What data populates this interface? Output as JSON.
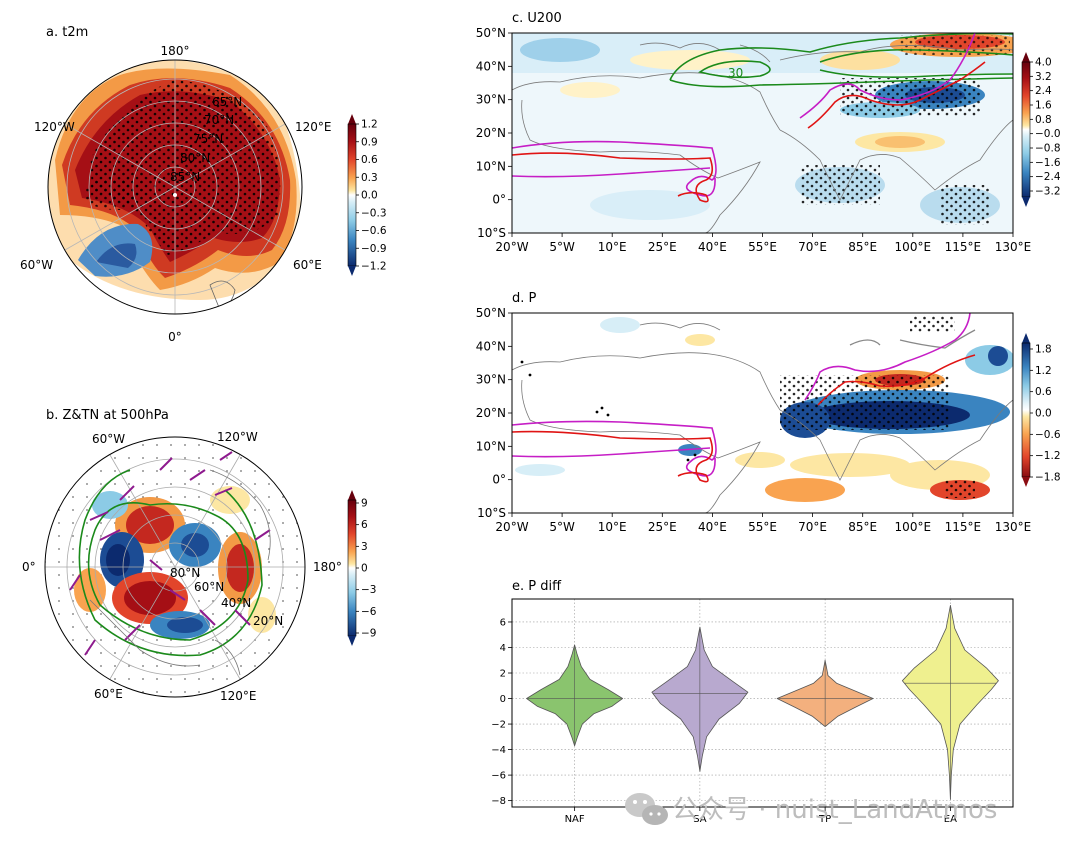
{
  "panels": {
    "a": {
      "title": "a. t2m",
      "lon_labels": [
        "180°",
        "120°W",
        "120°E",
        "60°W",
        "60°E",
        "0°"
      ],
      "lat_labels": [
        "65°N",
        "70°N",
        "75°N",
        "80°N",
        "85°N"
      ],
      "colorbar_ticks": [
        "1.2",
        "0.9",
        "0.6",
        "0.3",
        "0.0",
        "−0.3",
        "−0.6",
        "−0.9",
        "−1.2"
      ]
    },
    "b": {
      "title": "b. Z&TN at 500hPa",
      "lon_labels": [
        "60°W",
        "120°W",
        "0°",
        "180°",
        "60°E",
        "120°E"
      ],
      "lat_labels": [
        "80°N",
        "60°N",
        "40°N",
        "20°N"
      ],
      "colorbar_ticks": [
        "9",
        "6",
        "3",
        "0",
        "−3",
        "−6",
        "−9"
      ]
    },
    "c": {
      "title": "c. U200",
      "y_labels": [
        "50°N",
        "40°N",
        "30°N",
        "20°N",
        "10°N",
        "0°",
        "10°S"
      ],
      "x_labels": [
        "20°W",
        "5°W",
        "10°E",
        "25°E",
        "40°E",
        "55°E",
        "70°E",
        "85°E",
        "100°E",
        "115°E",
        "130°E"
      ],
      "contour_label": "30",
      "colorbar_ticks": [
        "4.0",
        "3.2",
        "2.4",
        "1.6",
        "0.8",
        "−0.0",
        "−0.8",
        "−1.6",
        "−2.4",
        "−3.2"
      ]
    },
    "d": {
      "title": "d. P",
      "y_labels": [
        "50°N",
        "40°N",
        "30°N",
        "20°N",
        "10°N",
        "0°",
        "10°S"
      ],
      "x_labels": [
        "20°W",
        "5°W",
        "10°E",
        "25°E",
        "40°E",
        "55°E",
        "70°E",
        "85°E",
        "100°E",
        "115°E",
        "130°E"
      ],
      "colorbar_ticks": [
        "1.8",
        "1.2",
        "0.6",
        "0.0",
        "−0.6",
        "−1.2",
        "−1.8"
      ]
    }
  },
  "chart_data": {
    "type": "violin",
    "title": "e. P diff",
    "categories": [
      "NAF",
      "SA",
      "TP",
      "EA"
    ],
    "colors": [
      "#8ac46e",
      "#b8a9cf",
      "#f3b07e",
      "#eff08f"
    ],
    "ylim": [
      -8.5,
      7.8
    ],
    "yticks": [
      6,
      4,
      2,
      0,
      -2,
      -4,
      -6,
      -8
    ],
    "ytick_labels": [
      "6",
      "4",
      "2",
      "0",
      "−2",
      "−4",
      "−6",
      "−8"
    ],
    "grid": true,
    "series": [
      {
        "name": "NAF",
        "min": -3.7,
        "max": 4.2,
        "median": 0.0,
        "profile": [
          [
            -3.7,
            0.0
          ],
          [
            -3.0,
            0.06
          ],
          [
            -2.0,
            0.16
          ],
          [
            -1.2,
            0.4
          ],
          [
            -0.6,
            0.78
          ],
          [
            0.0,
            1.0
          ],
          [
            0.7,
            0.7
          ],
          [
            1.5,
            0.32
          ],
          [
            2.5,
            0.14
          ],
          [
            3.5,
            0.05
          ],
          [
            4.2,
            0.0
          ]
        ]
      },
      {
        "name": "SA",
        "min": -5.7,
        "max": 5.6,
        "median": 0.4,
        "profile": [
          [
            -5.7,
            0.0
          ],
          [
            -4.5,
            0.05
          ],
          [
            -3.0,
            0.14
          ],
          [
            -1.6,
            0.4
          ],
          [
            -0.4,
            0.82
          ],
          [
            0.5,
            1.0
          ],
          [
            1.3,
            0.7
          ],
          [
            2.5,
            0.26
          ],
          [
            3.8,
            0.09
          ],
          [
            5.0,
            0.03
          ],
          [
            5.6,
            0.0
          ]
        ]
      },
      {
        "name": "TP",
        "min": -2.2,
        "max": 3.0,
        "median": 0.0,
        "profile": [
          [
            -2.2,
            0.0
          ],
          [
            -1.4,
            0.26
          ],
          [
            -0.7,
            0.62
          ],
          [
            0.0,
            1.0
          ],
          [
            0.6,
            0.62
          ],
          [
            1.2,
            0.24
          ],
          [
            1.8,
            0.06
          ],
          [
            2.4,
            0.03
          ],
          [
            3.0,
            0.0
          ]
        ]
      },
      {
        "name": "EA",
        "min": -7.9,
        "max": 7.3,
        "median": 1.2,
        "profile": [
          [
            -7.9,
            0.0
          ],
          [
            -6.0,
            0.02
          ],
          [
            -4.0,
            0.06
          ],
          [
            -2.0,
            0.2
          ],
          [
            -0.5,
            0.55
          ],
          [
            0.7,
            0.85
          ],
          [
            1.4,
            1.0
          ],
          [
            2.4,
            0.75
          ],
          [
            3.8,
            0.3
          ],
          [
            5.5,
            0.09
          ],
          [
            7.3,
            0.0
          ]
        ]
      }
    ]
  },
  "watermark": {
    "text": "公众号 · nuist_LandAtmos",
    "icon": "wechat-icon"
  }
}
